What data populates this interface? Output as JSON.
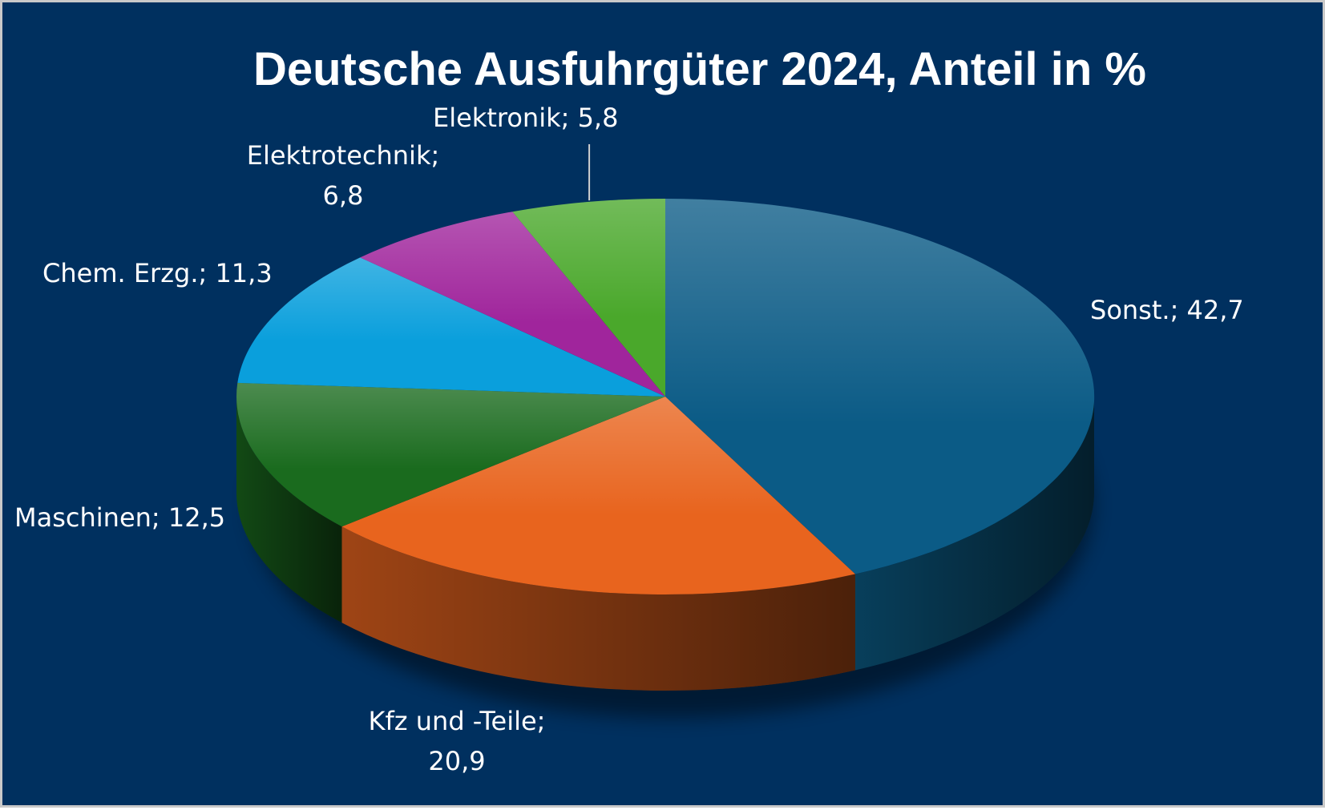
{
  "chart_data": {
    "type": "pie",
    "title": "Deutsche Ausfuhrgüter 2024, Anteil in %",
    "slices": [
      {
        "label": "Sonst.",
        "value": 42.7,
        "display": "42,7",
        "color": "#0b5b86"
      },
      {
        "label": "Kfz und -Teile",
        "value": 20.9,
        "display": "20,9",
        "color": "#e8641e"
      },
      {
        "label": "Maschinen",
        "value": 12.5,
        "display": "12,5",
        "color": "#1a6b1e"
      },
      {
        "label": "Chem. Erzg.",
        "value": 11.3,
        "display": "11,3",
        "color": "#0a9fdc"
      },
      {
        "label": "Elektrotechnik",
        "value": 6.8,
        "display": "6,8",
        "color": "#a0259c"
      },
      {
        "label": "Elektronik",
        "value": 5.8,
        "display": "5,8",
        "color": "#4aa82b"
      }
    ],
    "legend": "none",
    "data_labels": "category; value",
    "background_color": "#00305f",
    "style": "3d"
  }
}
